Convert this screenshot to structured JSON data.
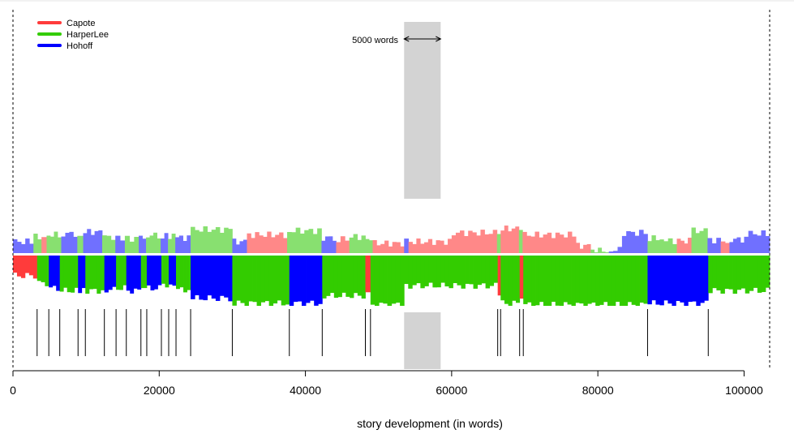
{
  "chart_data": {
    "type": "bar",
    "title": "",
    "xlabel": "story development (in words)",
    "ylabel": "",
    "xlim": [
      0,
      103500
    ],
    "xticks": [
      0,
      20000,
      40000,
      60000,
      80000,
      100000
    ],
    "xtick_labels": [
      "0",
      "20000",
      "40000",
      "60000",
      "80000",
      "100000"
    ],
    "grid": false,
    "legend_position": "top-left",
    "legend": [
      {
        "name": "Capote",
        "color": "#ff3b3b"
      },
      {
        "name": "HarperLee",
        "color": "#33cc00"
      },
      {
        "name": "Hohoff",
        "color": "#0000ff"
      }
    ],
    "window": {
      "start": 53500,
      "end": 58500,
      "label": "5000 words"
    },
    "colors": {
      "Capote": "#ff3b3b",
      "HarperLee": "#33cc00",
      "Hohoff": "#0000ff",
      "Capote_light": "#ff8888",
      "HarperLee_light": "#88e070",
      "Hohoff_light": "#7070ff",
      "window": "#d3d3d3"
    },
    "top_segments": [
      {
        "start": 0,
        "end": 2800,
        "author": "Hohoff",
        "margin": 0.28
      },
      {
        "start": 2800,
        "end": 3900,
        "author": "HarperLee",
        "margin": 0.4
      },
      {
        "start": 3900,
        "end": 4600,
        "author": "Capote",
        "margin": 0.35
      },
      {
        "start": 4600,
        "end": 6600,
        "author": "HarperLee",
        "margin": 0.45
      },
      {
        "start": 6600,
        "end": 8800,
        "author": "Hohoff",
        "margin": 0.48
      },
      {
        "start": 8800,
        "end": 9600,
        "author": "HarperLee",
        "margin": 0.5
      },
      {
        "start": 9600,
        "end": 12200,
        "author": "Hohoff",
        "margin": 0.52
      },
      {
        "start": 12200,
        "end": 14000,
        "author": "HarperLee",
        "margin": 0.4
      },
      {
        "start": 14000,
        "end": 15300,
        "author": "Hohoff",
        "margin": 0.35
      },
      {
        "start": 15300,
        "end": 17200,
        "author": "HarperLee",
        "margin": 0.36
      },
      {
        "start": 17200,
        "end": 18200,
        "author": "Hohoff",
        "margin": 0.42
      },
      {
        "start": 18200,
        "end": 20200,
        "author": "HarperLee",
        "margin": 0.44
      },
      {
        "start": 20200,
        "end": 21200,
        "author": "Hohoff",
        "margin": 0.44
      },
      {
        "start": 21200,
        "end": 22200,
        "author": "HarperLee",
        "margin": 0.4
      },
      {
        "start": 22200,
        "end": 24300,
        "author": "Hohoff",
        "margin": 0.38
      },
      {
        "start": 24300,
        "end": 30000,
        "author": "HarperLee",
        "margin": 0.58
      },
      {
        "start": 30000,
        "end": 32000,
        "author": "Hohoff",
        "margin": 0.28
      },
      {
        "start": 32000,
        "end": 37500,
        "author": "Capote",
        "margin": 0.45
      },
      {
        "start": 37500,
        "end": 42200,
        "author": "HarperLee",
        "margin": 0.55
      },
      {
        "start": 42200,
        "end": 44200,
        "author": "Hohoff",
        "margin": 0.38
      },
      {
        "start": 44200,
        "end": 46000,
        "author": "Capote",
        "margin": 0.34
      },
      {
        "start": 46000,
        "end": 48200,
        "author": "HarperLee",
        "margin": 0.4
      },
      {
        "start": 48200,
        "end": 49200,
        "author": "HarperLee",
        "margin": 0.3
      },
      {
        "start": 49200,
        "end": 53500,
        "author": "Capote",
        "margin": 0.24
      },
      {
        "start": 53500,
        "end": 54100,
        "author": "Hohoff",
        "margin": 0.3
      },
      {
        "start": 54100,
        "end": 60000,
        "author": "Capote",
        "margin": 0.28
      },
      {
        "start": 60000,
        "end": 66200,
        "author": "Capote",
        "margin": 0.5
      },
      {
        "start": 66200,
        "end": 66700,
        "author": "HarperLee",
        "margin": 0.55
      },
      {
        "start": 66700,
        "end": 69200,
        "author": "Capote",
        "margin": 0.6
      },
      {
        "start": 69200,
        "end": 69700,
        "author": "HarperLee",
        "margin": 0.55
      },
      {
        "start": 69700,
        "end": 77000,
        "author": "Capote",
        "margin": 0.45
      },
      {
        "start": 77000,
        "end": 79000,
        "author": "Capote",
        "margin": 0.18
      },
      {
        "start": 79000,
        "end": 81500,
        "author": "HarperLee",
        "margin": 0.06
      },
      {
        "start": 81500,
        "end": 83300,
        "author": "Hohoff",
        "margin": 0.08
      },
      {
        "start": 83300,
        "end": 86800,
        "author": "Hohoff",
        "margin": 0.5
      },
      {
        "start": 86800,
        "end": 89000,
        "author": "HarperLee",
        "margin": 0.36
      },
      {
        "start": 89000,
        "end": 90800,
        "author": "HarperLee",
        "margin": 0.3
      },
      {
        "start": 90800,
        "end": 92800,
        "author": "Capote",
        "margin": 0.3
      },
      {
        "start": 92800,
        "end": 95000,
        "author": "HarperLee",
        "margin": 0.55
      },
      {
        "start": 95000,
        "end": 96800,
        "author": "Hohoff",
        "margin": 0.32
      },
      {
        "start": 96800,
        "end": 98000,
        "author": "Capote",
        "margin": 0.3
      },
      {
        "start": 98000,
        "end": 100000,
        "author": "Hohoff",
        "margin": 0.34
      },
      {
        "start": 100000,
        "end": 103500,
        "author": "Hohoff",
        "margin": 0.48
      }
    ],
    "bottom_segments": [
      {
        "start": 0,
        "end": 3300,
        "author": "Capote",
        "margin": 0.4
      },
      {
        "start": 3300,
        "end": 4900,
        "author": "HarperLee",
        "margin": 0.55
      },
      {
        "start": 4900,
        "end": 6400,
        "author": "Hohoff",
        "margin": 0.65
      },
      {
        "start": 6400,
        "end": 8900,
        "author": "HarperLee",
        "margin": 0.7
      },
      {
        "start": 8900,
        "end": 9900,
        "author": "Hohoff",
        "margin": 0.7
      },
      {
        "start": 9900,
        "end": 12500,
        "author": "HarperLee",
        "margin": 0.7
      },
      {
        "start": 12500,
        "end": 14100,
        "author": "Hohoff",
        "margin": 0.68
      },
      {
        "start": 14100,
        "end": 15500,
        "author": "HarperLee",
        "margin": 0.65
      },
      {
        "start": 15500,
        "end": 17500,
        "author": "Hohoff",
        "margin": 0.7
      },
      {
        "start": 17500,
        "end": 18300,
        "author": "HarperLee",
        "margin": 0.68
      },
      {
        "start": 18300,
        "end": 20300,
        "author": "Hohoff",
        "margin": 0.65
      },
      {
        "start": 20300,
        "end": 21300,
        "author": "HarperLee",
        "margin": 0.62
      },
      {
        "start": 21300,
        "end": 22300,
        "author": "Hohoff",
        "margin": 0.62
      },
      {
        "start": 22300,
        "end": 24300,
        "author": "HarperLee",
        "margin": 0.68
      },
      {
        "start": 24300,
        "end": 30000,
        "author": "Hohoff",
        "margin": 0.85
      },
      {
        "start": 30000,
        "end": 37800,
        "author": "HarperLee",
        "margin": 0.95
      },
      {
        "start": 37800,
        "end": 42300,
        "author": "Hohoff",
        "margin": 0.95
      },
      {
        "start": 42300,
        "end": 48200,
        "author": "HarperLee",
        "margin": 0.8
      },
      {
        "start": 48200,
        "end": 48900,
        "author": "Capote",
        "margin": 0.7
      },
      {
        "start": 48900,
        "end": 53500,
        "author": "HarperLee",
        "margin": 0.98
      },
      {
        "start": 53500,
        "end": 66300,
        "author": "HarperLee",
        "margin": 0.6
      },
      {
        "start": 66300,
        "end": 66700,
        "author": "Capote",
        "margin": 0.85
      },
      {
        "start": 66700,
        "end": 69300,
        "author": "HarperLee",
        "margin": 0.95
      },
      {
        "start": 69300,
        "end": 69800,
        "author": "Capote",
        "margin": 0.9
      },
      {
        "start": 69800,
        "end": 86800,
        "author": "HarperLee",
        "margin": 0.98
      },
      {
        "start": 86800,
        "end": 95100,
        "author": "Hohoff",
        "margin": 0.95
      },
      {
        "start": 95100,
        "end": 103500,
        "author": "HarperLee",
        "margin": 0.7
      }
    ],
    "change_points": [
      3300,
      4900,
      6400,
      8900,
      9900,
      12500,
      14100,
      15500,
      17500,
      18300,
      20300,
      21300,
      22300,
      24300,
      30000,
      37800,
      42300,
      48200,
      48900,
      66300,
      66700,
      69300,
      69800,
      86800,
      95100
    ]
  }
}
